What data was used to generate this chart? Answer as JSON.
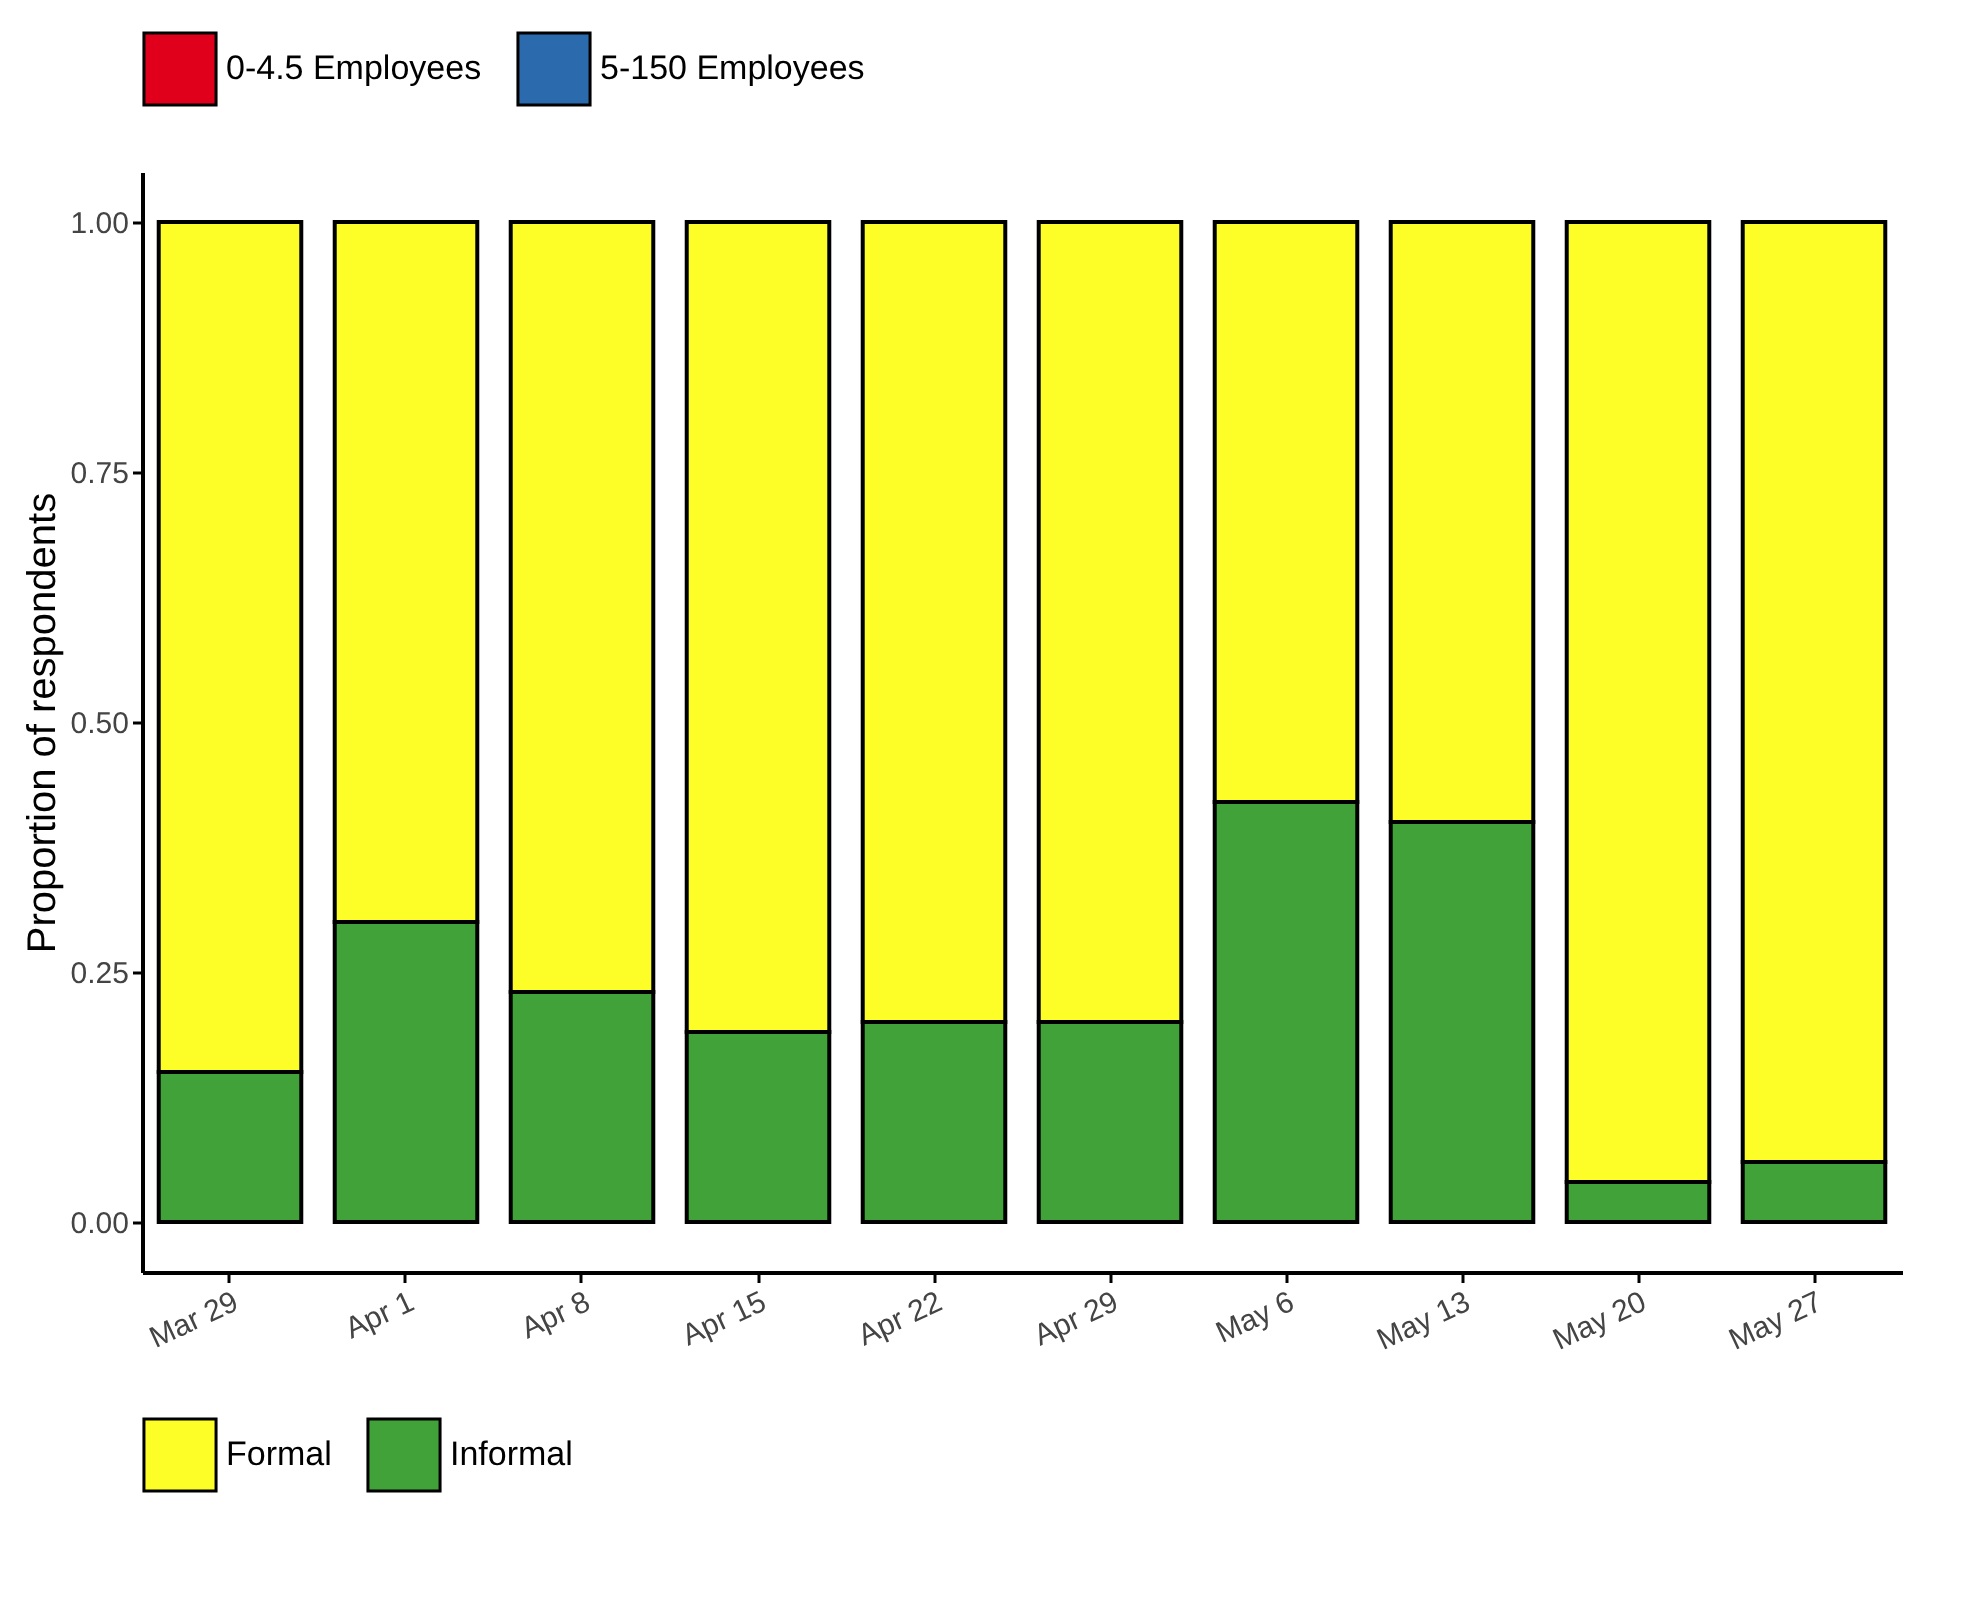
{
  "chart_data": {
    "type": "bar",
    "stacked": true,
    "ylabel": "Proportion of respondents",
    "categories": [
      "Mar 29",
      "Apr 1",
      "Apr 8",
      "Apr 15",
      "Apr 22",
      "Apr 29",
      "May 6",
      "May 13",
      "May 20",
      "May 27"
    ],
    "series": [
      {
        "name": "Informal",
        "color": "#41a23a",
        "values": [
          0.15,
          0.3,
          0.23,
          0.19,
          0.2,
          0.2,
          0.42,
          0.4,
          0.04,
          0.06
        ]
      },
      {
        "name": "Formal",
        "color": "#fdfd27",
        "values": [
          0.85,
          0.7,
          0.77,
          0.81,
          0.8,
          0.8,
          0.58,
          0.6,
          0.96,
          0.94
        ]
      },
      {
        "name": "0-4.5 Employees",
        "color": "#e0001b",
        "values": [
          null,
          null,
          null,
          null,
          null,
          null,
          null,
          null,
          null,
          null
        ]
      },
      {
        "name": "5-150 Employees",
        "color": "#2b6aac",
        "values": [
          null,
          null,
          null,
          null,
          null,
          null,
          null,
          null,
          null,
          null
        ]
      }
    ],
    "ylim": [
      -0.05,
      1.05
    ],
    "yticks": [
      {
        "value": 0,
        "label": "0.00"
      },
      {
        "value": 0.25,
        "label": "0.25"
      },
      {
        "value": 0.5,
        "label": "0.50"
      },
      {
        "value": 0.75,
        "label": "0.75"
      },
      {
        "value": 1,
        "label": "1.00"
      }
    ],
    "legend": "bottom",
    "grid": false
  }
}
